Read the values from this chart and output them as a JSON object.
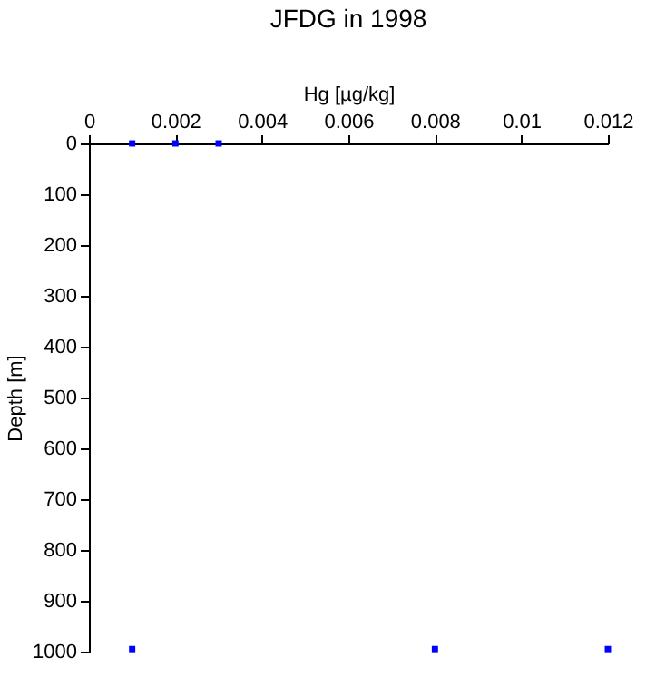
{
  "chart_data": {
    "type": "scatter",
    "title": "JFDG in 1998",
    "xlabel": "Hg [µg/kg]",
    "ylabel": "Depth [m]",
    "x": [
      0.001,
      0.002,
      0.003,
      0.001,
      0.008,
      0.012
    ],
    "values": [
      0,
      0,
      0,
      995,
      995,
      995
    ],
    "color": "#0000ff",
    "marker": "square",
    "xlim": [
      0,
      0.012
    ],
    "xticks": [
      0,
      0.002,
      0.004,
      0.006,
      0.008,
      0.01,
      0.012
    ],
    "ylim": [
      1000,
      0
    ],
    "yticks": [
      0,
      100,
      200,
      300,
      400,
      500,
      600,
      700,
      800,
      900,
      1000
    ],
    "grid": false
  }
}
